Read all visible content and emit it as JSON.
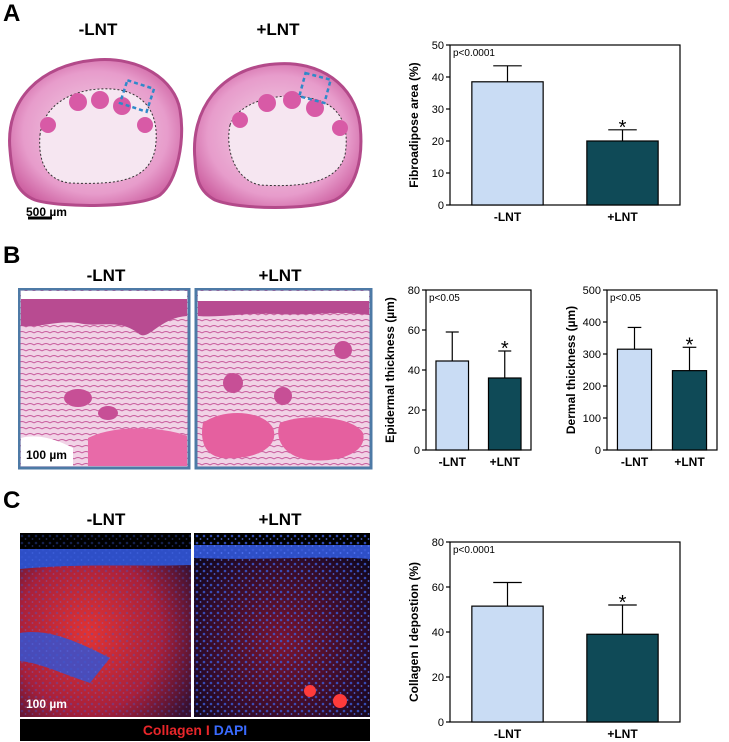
{
  "panels": {
    "A": {
      "letter": "A",
      "image_labels": [
        "-LNT",
        "+LNT"
      ],
      "scale_bar": "500 µm"
    },
    "B": {
      "letter": "B",
      "image_labels": [
        "-LNT",
        "+LNT"
      ],
      "scale_bar": "100 µm"
    },
    "C": {
      "letter": "C",
      "image_labels": [
        "-LNT",
        "+LNT"
      ],
      "scale_bar": "100 µm",
      "stain_legend": {
        "collagen": "Collagen I",
        "dapi": "DAPI"
      }
    }
  },
  "colors": {
    "control_bar": "#c9dcf4",
    "treated_bar": "#0f4a57",
    "frame_blue": "#4d7aa6",
    "collagen_red": "#e8262a",
    "dapi_blue": "#3a5bd9"
  },
  "chart_data": [
    {
      "id": "fibroadipose",
      "type": "bar",
      "categories": [
        "-LNT",
        "+LNT"
      ],
      "values": [
        38.5,
        20
      ],
      "errors": [
        5,
        3.5
      ],
      "ylabel": "Fibroadipose area (%)",
      "ylim": [
        0,
        50
      ],
      "yticks": [
        0,
        10,
        20,
        30,
        40,
        50
      ],
      "annotation": "p<0.0001",
      "significance": [
        "",
        "*"
      ]
    },
    {
      "id": "epidermal",
      "type": "bar",
      "categories": [
        "-LNT",
        "+LNT"
      ],
      "values": [
        44.5,
        36
      ],
      "errors": [
        14.5,
        13.5
      ],
      "ylabel": "Epidermal thickness (µm)",
      "ylim": [
        0,
        80
      ],
      "yticks": [
        0,
        20,
        40,
        60,
        80
      ],
      "annotation": "p<0.05",
      "significance": [
        "",
        "*"
      ]
    },
    {
      "id": "dermal",
      "type": "bar",
      "categories": [
        "-LNT",
        "+LNT"
      ],
      "values": [
        315,
        248
      ],
      "errors": [
        68,
        73
      ],
      "ylabel": "Dermal thickness (µm)",
      "ylim": [
        0,
        500
      ],
      "yticks": [
        0,
        100,
        200,
        300,
        400,
        500
      ],
      "annotation": "p<0.05",
      "significance": [
        "",
        "*"
      ]
    },
    {
      "id": "collagen",
      "type": "bar",
      "categories": [
        "-LNT",
        "+LNT"
      ],
      "values": [
        51.5,
        39
      ],
      "errors": [
        10.5,
        13
      ],
      "ylabel": "Collagen I depostion (%)",
      "ylim": [
        0,
        80
      ],
      "yticks": [
        0,
        20,
        40,
        60,
        80
      ],
      "annotation": "p<0.0001",
      "significance": [
        "",
        "*"
      ]
    }
  ]
}
